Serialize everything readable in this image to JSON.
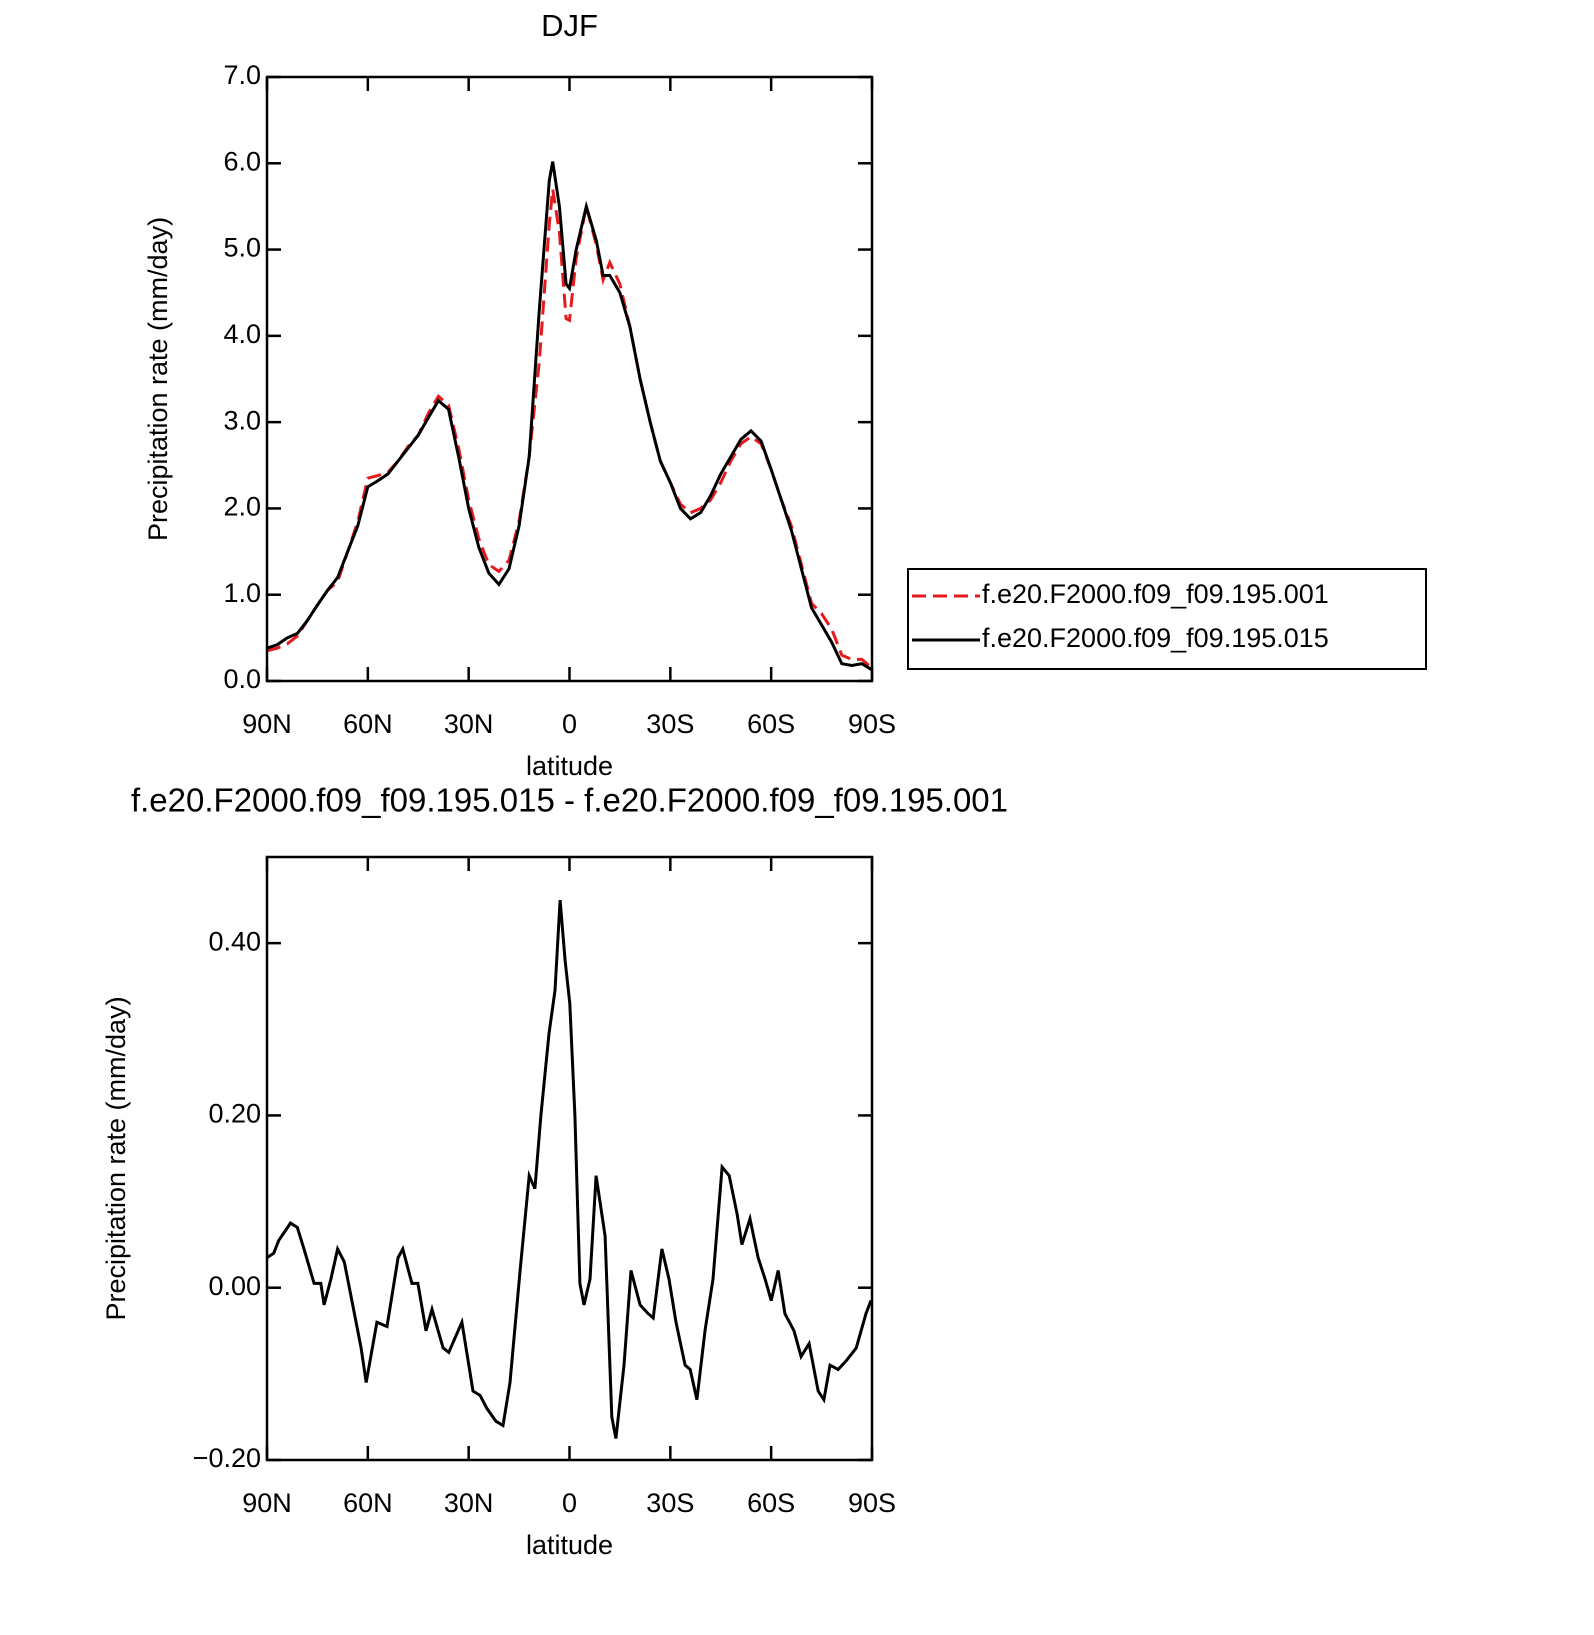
{
  "chart_data": [
    {
      "type": "line",
      "title": "DJF",
      "xlabel": "latitude",
      "ylabel": "Precipitation rate (mm/day)",
      "x": [
        90,
        87,
        84,
        81,
        78,
        75,
        72,
        69,
        66,
        63,
        60,
        57,
        54,
        51,
        48,
        45,
        42,
        39,
        36,
        33,
        30,
        27,
        24,
        21,
        18,
        15,
        12,
        9,
        6,
        5,
        3,
        1,
        0,
        -2,
        -5,
        -8,
        -10,
        -12,
        -15,
        -18,
        -21,
        -24,
        -27,
        -30,
        -33,
        -36,
        -39,
        -42,
        -45,
        -48,
        -51,
        -54,
        -57,
        -60,
        -63,
        -66,
        -69,
        -72,
        -75,
        -78,
        -81,
        -84,
        -87,
        -90
      ],
      "series": [
        {
          "name": "f.e20.F2000.f09_f09.195.001",
          "color": "#e8191c",
          "dash": true,
          "values": [
            0.35,
            0.38,
            0.43,
            0.52,
            0.7,
            0.88,
            1.05,
            1.15,
            1.5,
            1.85,
            2.35,
            2.38,
            2.42,
            2.55,
            2.72,
            2.85,
            3.1,
            3.3,
            3.2,
            2.7,
            2.1,
            1.65,
            1.35,
            1.27,
            1.4,
            1.85,
            2.6,
            3.7,
            5.3,
            5.7,
            5.2,
            4.2,
            4.18,
            4.9,
            5.5,
            5.05,
            4.65,
            4.85,
            4.6,
            4.1,
            3.5,
            3.0,
            2.55,
            2.3,
            2.05,
            1.95,
            2.0,
            2.1,
            2.3,
            2.55,
            2.75,
            2.83,
            2.75,
            2.45,
            2.1,
            1.8,
            1.35,
            0.9,
            0.78,
            0.6,
            0.3,
            0.25,
            0.25,
            0.15
          ]
        },
        {
          "name": "f.e20.F2000.f09_f09.195.015",
          "color": "#000000",
          "dash": false,
          "values": [
            0.38,
            0.42,
            0.5,
            0.55,
            0.7,
            0.88,
            1.05,
            1.2,
            1.5,
            1.8,
            2.25,
            2.32,
            2.4,
            2.55,
            2.7,
            2.85,
            3.05,
            3.25,
            3.15,
            2.6,
            2.0,
            1.55,
            1.25,
            1.12,
            1.3,
            1.8,
            2.6,
            4.3,
            5.8,
            6.02,
            5.5,
            4.6,
            4.55,
            5.0,
            5.5,
            5.1,
            4.7,
            4.7,
            4.5,
            4.1,
            3.5,
            3.0,
            2.55,
            2.3,
            2.0,
            1.88,
            1.95,
            2.15,
            2.4,
            2.6,
            2.8,
            2.9,
            2.78,
            2.45,
            2.1,
            1.75,
            1.3,
            0.85,
            0.65,
            0.45,
            0.2,
            0.18,
            0.2,
            0.13
          ]
        }
      ],
      "xlim": [
        90,
        -90
      ],
      "xticks": [
        {
          "value": 90,
          "label": "90N"
        },
        {
          "value": 60,
          "label": "60N"
        },
        {
          "value": 30,
          "label": "30N"
        },
        0,
        {
          "value": -30,
          "label": "30S"
        },
        {
          "value": -60,
          "label": "60S"
        },
        {
          "value": -90,
          "label": "90S"
        }
      ],
      "ylim": [
        0,
        7
      ],
      "yticks": [
        {
          "value": 0,
          "label": "0.0"
        },
        {
          "value": 1,
          "label": "1.0"
        },
        {
          "value": 2,
          "label": "2.0"
        },
        {
          "value": 3,
          "label": "3.0"
        },
        {
          "value": 4,
          "label": "4.0"
        },
        {
          "value": 5,
          "label": "5.0"
        },
        {
          "value": 6,
          "label": "6.0"
        },
        {
          "value": 7,
          "label": "7.0"
        }
      ],
      "legend": "right"
    },
    {
      "type": "line",
      "title": "f.e20.F2000.f09_f09.195.015 - f.e20.F2000.f09_f09.195.001",
      "xlabel": "latitude",
      "ylabel": "Precipitation rate (mm/day)",
      "x": [
        90,
        88,
        86.5,
        83,
        81,
        79,
        76,
        74,
        73,
        71,
        69,
        67,
        64,
        62,
        60.5,
        57.3,
        54.3,
        51,
        49.6,
        46.9,
        45.1,
        42.7,
        40.9,
        37.6,
        35.9,
        32,
        28.7,
        26.6,
        24.6,
        21.9,
        19.8,
        17.7,
        14.7,
        12,
        10.3,
        8.5,
        6.1,
        4.3,
        2.8,
        1.3,
        -0.1,
        -1.6,
        -3.1,
        -4.3,
        -6.1,
        -7.9,
        -10.6,
        -12.6,
        -13.8,
        -16.2,
        -18.3,
        -21,
        -23.4,
        -24.9,
        -27.5,
        -29.6,
        -31.7,
        -34.4,
        -35.9,
        -37.9,
        -40.3,
        -42.7,
        -45.4,
        -47.5,
        -49.9,
        -51.3,
        -53.7,
        -56.1,
        -58.2,
        -60,
        -62.1,
        -64.1,
        -66.8,
        -68.9,
        -71.3,
        -74,
        -75.7,
        -77.5,
        -79.9,
        -82.3,
        -85.3,
        -88.2,
        -89.7
      ],
      "values": [
        0.035,
        0.04,
        0.055,
        0.075,
        0.07,
        0.045,
        0.005,
        0.005,
        -0.02,
        0.01,
        0.045,
        0.03,
        -0.03,
        -0.07,
        -0.11,
        -0.04,
        -0.045,
        0.035,
        0.045,
        0.005,
        0.005,
        -0.05,
        -0.025,
        -0.07,
        -0.075,
        -0.04,
        -0.12,
        -0.125,
        -0.14,
        -0.155,
        -0.16,
        -0.11,
        0.02,
        0.13,
        0.115,
        0.2,
        0.295,
        0.345,
        0.45,
        0.38,
        0.33,
        0.2,
        0.005,
        -0.02,
        0.01,
        0.13,
        0.06,
        -0.15,
        -0.175,
        -0.09,
        0.02,
        -0.02,
        -0.03,
        -0.035,
        0.045,
        0.01,
        -0.04,
        -0.09,
        -0.095,
        -0.13,
        -0.05,
        0.01,
        0.14,
        0.13,
        0.085,
        0.05,
        0.08,
        0.035,
        0.01,
        -0.015,
        0.02,
        -0.03,
        -0.05,
        -0.08,
        -0.065,
        -0.12,
        -0.13,
        -0.09,
        -0.095,
        -0.085,
        -0.07,
        -0.03,
        -0.015
      ],
      "color": "#000000",
      "xlim": [
        90,
        -90
      ],
      "xticks": [
        {
          "value": 90,
          "label": "90N"
        },
        {
          "value": 60,
          "label": "60N"
        },
        {
          "value": 30,
          "label": "30N"
        },
        0,
        {
          "value": -30,
          "label": "30S"
        },
        {
          "value": -60,
          "label": "60S"
        },
        {
          "value": -90,
          "label": "90S"
        }
      ],
      "ylim": [
        -0.2,
        0.5
      ],
      "yticks": [
        {
          "value": -0.2,
          "label": "−0.20"
        },
        {
          "value": 0,
          "label": "0.00"
        },
        {
          "value": 0.2,
          "label": "0.20"
        },
        {
          "value": 0.4,
          "label": "0.40"
        }
      ]
    }
  ]
}
